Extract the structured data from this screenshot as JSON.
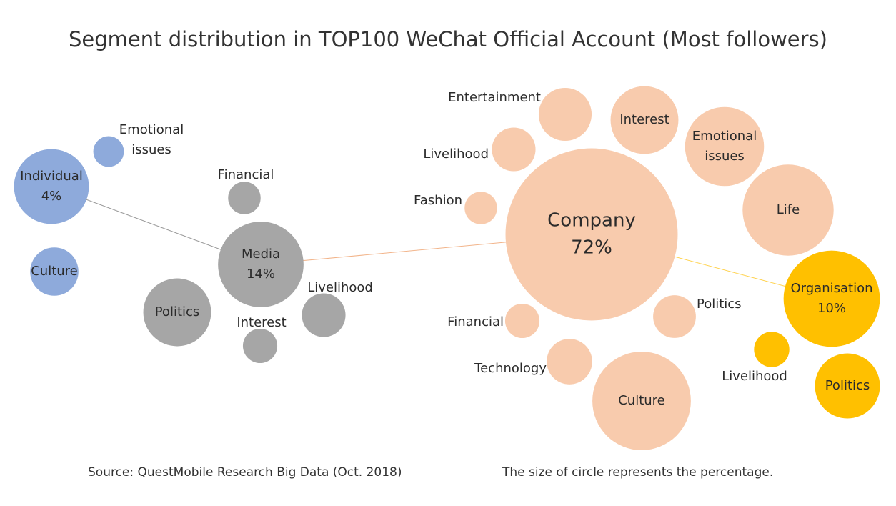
{
  "chart_data": {
    "type": "bubble",
    "title": "Segment distribution in TOP100 WeChat Official Account (Most followers)",
    "categories": [
      {
        "name": "Individual",
        "value": 4,
        "label": "Individual",
        "value_label": "4%",
        "color": "#8eaadb"
      },
      {
        "name": "Media",
        "value": 14,
        "label": "Media",
        "value_label": "14%",
        "color": "#a6a6a6"
      },
      {
        "name": "Company",
        "value": 72,
        "label": "Company",
        "value_label": "72%",
        "color": "#f8cbad"
      },
      {
        "name": "Organisation",
        "value": 10,
        "label": "Organisation",
        "value_label": "10%",
        "color": "#ffc000"
      }
    ],
    "segments": [
      {
        "category": "Individual",
        "name": "Emotional issues",
        "lines": [
          "Emotional",
          "issues"
        ],
        "label_inside": false,
        "relative_size": 0.33
      },
      {
        "category": "Individual",
        "name": "Culture",
        "lines": [
          "Culture"
        ],
        "label_inside": true,
        "relative_size": 0.52
      },
      {
        "category": "Media",
        "name": "Financial",
        "lines": [
          "Financial"
        ],
        "label_inside": false,
        "relative_size": 0.35
      },
      {
        "category": "Media",
        "name": "Politics",
        "lines": [
          "Politics"
        ],
        "label_inside": true,
        "relative_size": 0.73
      },
      {
        "category": "Media",
        "name": "Interest",
        "lines": [
          "Interest"
        ],
        "label_inside": false,
        "relative_size": 0.37
      },
      {
        "category": "Media",
        "name": "Livelihood",
        "lines": [
          "Livelihood"
        ],
        "label_inside": false,
        "relative_size": 0.47
      },
      {
        "category": "Company",
        "name": "Entertainment",
        "lines": [
          "Entertainment"
        ],
        "label_inside": false,
        "relative_size": 0.57
      },
      {
        "category": "Company",
        "name": "Livelihood",
        "lines": [
          "Livelihood"
        ],
        "label_inside": false,
        "relative_size": 0.47
      },
      {
        "category": "Company",
        "name": "Fashion",
        "lines": [
          "Fashion"
        ],
        "label_inside": false,
        "relative_size": 0.35
      },
      {
        "category": "Company",
        "name": "Interest",
        "lines": [
          "Interest"
        ],
        "label_inside": true,
        "relative_size": 0.73
      },
      {
        "category": "Company",
        "name": "Emotional issues",
        "lines": [
          "Emotional",
          "issues"
        ],
        "label_inside": true,
        "relative_size": 0.85
      },
      {
        "category": "Company",
        "name": "Life",
        "lines": [
          "Life"
        ],
        "label_inside": true,
        "relative_size": 0.98
      },
      {
        "category": "Company",
        "name": "Politics",
        "lines": [
          "Politics"
        ],
        "label_inside": false,
        "relative_size": 0.46
      },
      {
        "category": "Company",
        "name": "Financial",
        "lines": [
          "Financial"
        ],
        "label_inside": false,
        "relative_size": 0.37
      },
      {
        "category": "Company",
        "name": "Technology",
        "lines": [
          "Technology"
        ],
        "label_inside": false,
        "relative_size": 0.49
      },
      {
        "category": "Company",
        "name": "Culture",
        "lines": [
          "Culture"
        ],
        "label_inside": true,
        "relative_size": 1.06
      },
      {
        "category": "Organisation",
        "name": "Livelihood",
        "lines": [
          "Livelihood"
        ],
        "label_inside": false,
        "relative_size": 0.38
      },
      {
        "category": "Organisation",
        "name": "Politics",
        "lines": [
          "Politics"
        ],
        "label_inside": true,
        "relative_size": 0.7
      }
    ],
    "connections": [
      [
        "Individual",
        "Media"
      ],
      [
        "Media",
        "Company"
      ],
      [
        "Company",
        "Organisation"
      ]
    ],
    "size_note": "The size of circle represents the percentage.",
    "source": "Source: QuestMobile Research Big Data (Oct. 2018)"
  }
}
